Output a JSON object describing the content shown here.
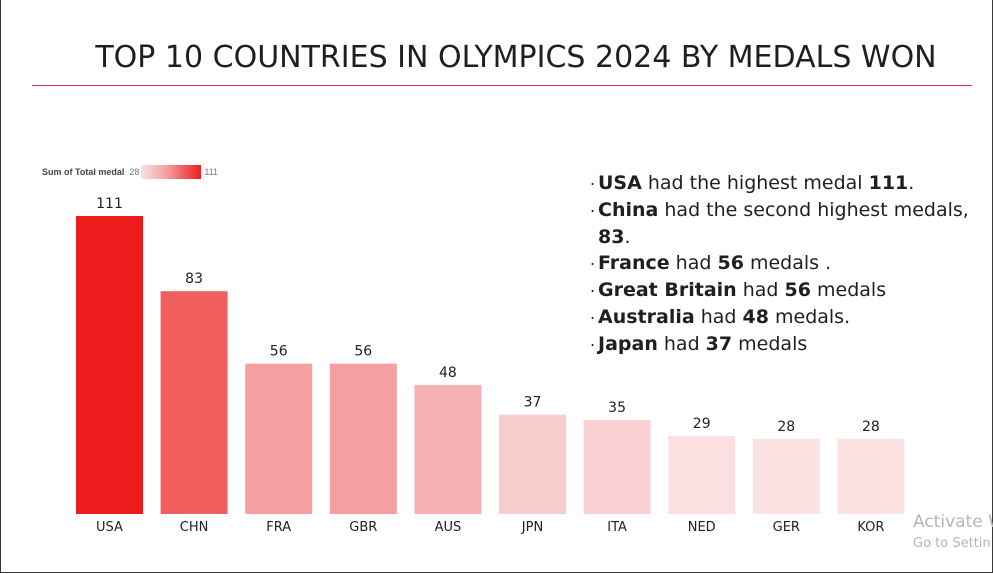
{
  "title": "TOP 10 COUNTRIES IN OLYMPICS 2024 BY MEDALS WON",
  "legend": {
    "label": "Sum of Total medal",
    "min": "28",
    "max": "111"
  },
  "colors": {
    "accent_line": "#e5245f",
    "bar_max": "#ed1c1c",
    "bar_min": "#fbe2e3"
  },
  "chart_data": {
    "type": "bar",
    "categories": [
      "USA",
      "CHN",
      "FRA",
      "GBR",
      "AUS",
      "JPN",
      "ITA",
      "NED",
      "GER",
      "KOR"
    ],
    "values": [
      111,
      83,
      56,
      56,
      48,
      37,
      35,
      29,
      28,
      28
    ],
    "title": "TOP 10 COUNTRIES IN OLYMPICS 2024 BY MEDALS WON",
    "xlabel": "",
    "ylabel": "",
    "ylim": [
      0,
      111
    ],
    "grid": false,
    "legend_position": "top-left",
    "data_labels": true,
    "color_scale": "gradient by value"
  },
  "insights": [
    {
      "bold": "USA",
      "text": " had the highest medal ",
      "value": "111",
      "end": "."
    },
    {
      "bold": "China",
      "text": " had the second highest medals, ",
      "value": "83",
      "end": "."
    },
    {
      "bold": "France",
      "text": " had ",
      "value": "56",
      "end": " medals ."
    },
    {
      "bold": "Great Britain",
      "text": " had ",
      "value": "56",
      "end": " medals"
    },
    {
      "bold": "Australia",
      "text": " had ",
      "value": "48",
      "end": " medals."
    },
    {
      "bold": "Japan",
      "text": " had ",
      "value": "37",
      "end": " medals"
    }
  ],
  "watermark": {
    "line1": "Activate W",
    "line2": "Go to Settin"
  }
}
